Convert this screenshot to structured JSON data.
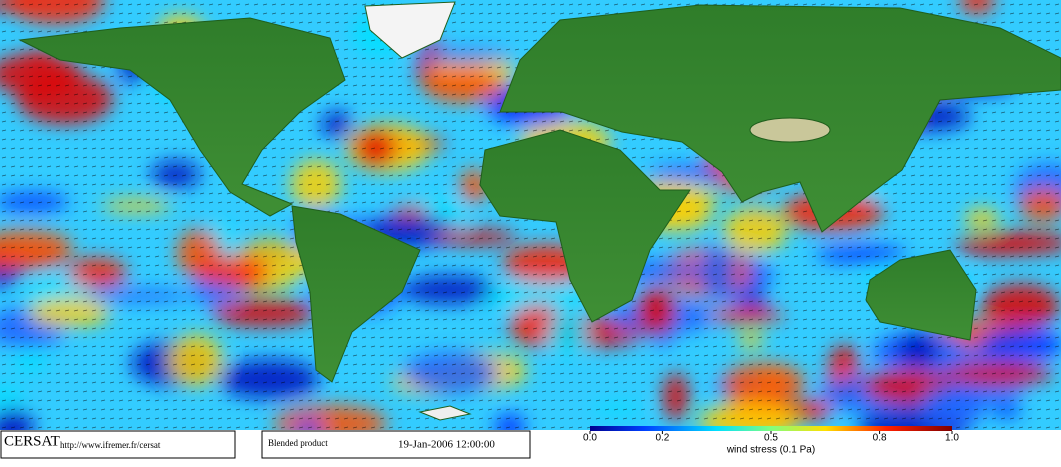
{
  "legend_bar": {
    "title": "wind stress (0.1 Pa)",
    "range": [
      0,
      1
    ],
    "ticks": [
      {
        "value": 0,
        "label": "0.0"
      },
      0.2,
      0.5,
      0.8,
      {
        "value": 1,
        "label": "1.0"
      }
    ]
  },
  "footer": {
    "logo": "CERSAT",
    "url": "http://www.ifremer.fr/cersat",
    "product": "Blended product",
    "timestamp": "19-Jan-2006 12:00:00"
  }
}
